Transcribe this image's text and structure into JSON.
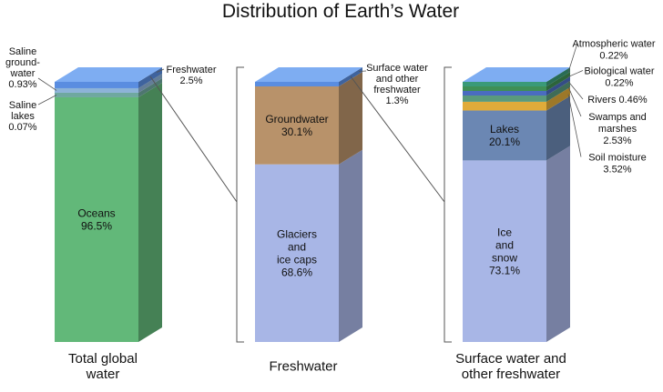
{
  "chart_data": {
    "type": "bar",
    "subtype": "stacked-3d-breakdown",
    "title": "Distribution of Earth’s Water",
    "unit": "%",
    "bars": [
      {
        "name": "Total global water",
        "label_lines": [
          "Total global",
          "water"
        ],
        "segments": [
          {
            "name": "Oceans",
            "label_lines": [
              "Oceans",
              "96.5%"
            ],
            "value": 96.5,
            "label_pos": "inside",
            "color": "#62b879"
          },
          {
            "name": "Saline lakes",
            "label_lines": [
              "Saline",
              "lakes",
              "0.07%"
            ],
            "value": 0.07,
            "label_pos": "left",
            "color": "#6fa8a0"
          },
          {
            "name": "Saline groundwater",
            "label_lines": [
              "Saline",
              "ground-",
              "water",
              "0.93%"
            ],
            "value": 0.93,
            "label_pos": "left",
            "color": "#8db3d8"
          },
          {
            "name": "Freshwater",
            "label_lines": [
              "Freshwater",
              "2.5%"
            ],
            "value": 2.5,
            "label_pos": "right",
            "color": "#5a8de0"
          }
        ]
      },
      {
        "name": "Freshwater",
        "label_lines": [
          "Freshwater"
        ],
        "segments": [
          {
            "name": "Glaciers and ice caps",
            "label_lines": [
              "Glaciers",
              "and",
              "ice caps",
              "68.6%"
            ],
            "value": 68.6,
            "label_pos": "inside",
            "color": "#a8b6e6"
          },
          {
            "name": "Groundwater",
            "label_lines": [
              "Groundwater",
              "30.1%"
            ],
            "value": 30.1,
            "label_pos": "inside",
            "color": "#b8926a"
          },
          {
            "name": "Surface water and other freshwater",
            "label_lines": [
              "Surface water",
              "and other",
              "freshwater",
              "1.3%"
            ],
            "value": 1.3,
            "label_pos": "right",
            "color": "#5a8de0"
          }
        ]
      },
      {
        "name": "Surface water and other freshwater",
        "label_lines": [
          "Surface water and",
          "other freshwater"
        ],
        "segments": [
          {
            "name": "Ice and snow",
            "label_lines": [
              "Ice",
              "and",
              "snow",
              "73.1%"
            ],
            "value": 73.1,
            "label_pos": "inside",
            "color": "#a8b6e6"
          },
          {
            "name": "Lakes",
            "label_lines": [
              "Lakes",
              "20.1%"
            ],
            "value": 20.1,
            "label_pos": "inside",
            "color": "#6b87b3"
          },
          {
            "name": "Soil moisture",
            "label_lines": [
              "Soil moisture",
              "3.52%"
            ],
            "value": 3.52,
            "label_pos": "right",
            "color": "#e0ab3a"
          },
          {
            "name": "Swamps and marshes",
            "label_lines": [
              "Swamps and",
              "marshes",
              "2.53%"
            ],
            "value": 2.53,
            "label_pos": "right",
            "color": "#5a9a7c"
          },
          {
            "name": "Rivers",
            "label_lines": [
              "Rivers  0.46%"
            ],
            "value": 0.46,
            "label_pos": "right",
            "color": "#4a6cc0"
          },
          {
            "name": "Biological water",
            "label_lines": [
              "Biological water",
              "0.22%"
            ],
            "value": 0.22,
            "label_pos": "right",
            "color": "#3f8f55"
          },
          {
            "name": "Atmospheric water",
            "label_lines": [
              "Atmospheric water",
              "0.22%"
            ],
            "value": 0.22,
            "label_pos": "right",
            "color": "#3a9a78"
          }
        ]
      }
    ],
    "top_color": "#7eadf2",
    "bracket_color": "#555555",
    "legend": "none",
    "grid": false
  }
}
